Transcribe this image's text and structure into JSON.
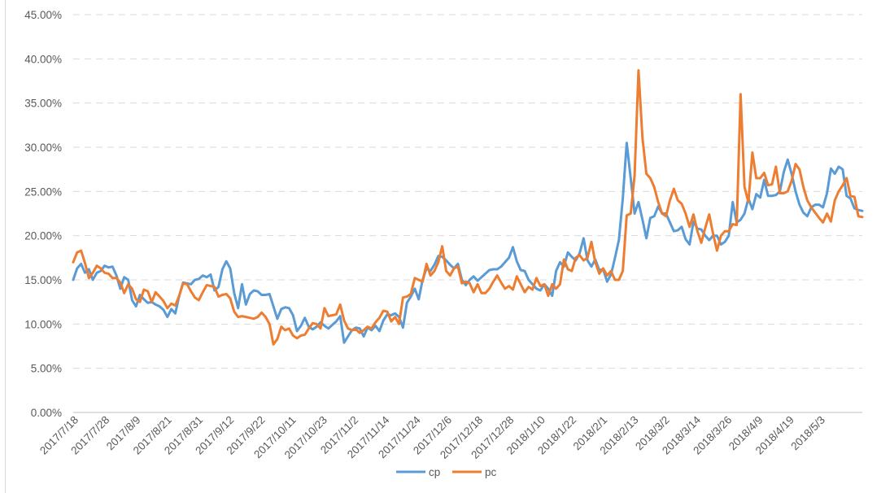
{
  "chart_data": {
    "type": "line",
    "title": "",
    "xlabel": "",
    "ylabel": "",
    "ylim": [
      0,
      0.45
    ],
    "y_ticks": [
      "0.00%",
      "5.00%",
      "10.00%",
      "15.00%",
      "20.00%",
      "25.00%",
      "30.00%",
      "35.00%",
      "40.00%",
      "45.00%"
    ],
    "x_tick_labels": [
      "2017/7/18",
      "2017/7/28",
      "2017/8/9",
      "2017/8/21",
      "2017/8/31",
      "2017/9/12",
      "2017/9/22",
      "2017/10/11",
      "2017/10/23",
      "2017/11/2",
      "2017/11/14",
      "2017/11/24",
      "2017/12/6",
      "2017/12/18",
      "2017/12/28",
      "2018/1/10",
      "2018/1/22",
      "2018/2/1",
      "2018/2/13",
      "2018/3/2",
      "2018/3/14",
      "2018/3/26",
      "2018/4/9",
      "2018/4/19",
      "2018/5/3"
    ],
    "grid": true,
    "legend_position": "bottom",
    "series": [
      {
        "name": "cp",
        "color": "#5b9bd5",
        "values": [
          0.15,
          0.163,
          0.168,
          0.158,
          0.162,
          0.15,
          0.158,
          0.16,
          0.166,
          0.164,
          0.165,
          0.155,
          0.14,
          0.153,
          0.15,
          0.127,
          0.12,
          0.133,
          0.128,
          0.124,
          0.125,
          0.122,
          0.12,
          0.116,
          0.108,
          0.117,
          0.112,
          0.132,
          0.147,
          0.146,
          0.145,
          0.15,
          0.151,
          0.155,
          0.153,
          0.156,
          0.138,
          0.142,
          0.162,
          0.171,
          0.163,
          0.135,
          0.118,
          0.145,
          0.122,
          0.134,
          0.138,
          0.137,
          0.133,
          0.133,
          0.134,
          0.12,
          0.106,
          0.117,
          0.119,
          0.118,
          0.11,
          0.092,
          0.098,
          0.107,
          0.097,
          0.094,
          0.097,
          0.102,
          0.098,
          0.095,
          0.099,
          0.103,
          0.109,
          0.079,
          0.086,
          0.093,
          0.096,
          0.095,
          0.086,
          0.096,
          0.093,
          0.098,
          0.092,
          0.104,
          0.111,
          0.11,
          0.112,
          0.108,
          0.096,
          0.124,
          0.131,
          0.14,
          0.128,
          0.15,
          0.163,
          0.16,
          0.167,
          0.177,
          0.176,
          0.172,
          0.167,
          0.163,
          0.168,
          0.15,
          0.144,
          0.15,
          0.154,
          0.149,
          0.153,
          0.157,
          0.161,
          0.162,
          0.162,
          0.165,
          0.17,
          0.175,
          0.187,
          0.171,
          0.161,
          0.16,
          0.15,
          0.145,
          0.14,
          0.138,
          0.145,
          0.14,
          0.132,
          0.16,
          0.17,
          0.165,
          0.181,
          0.176,
          0.172,
          0.18,
          0.197,
          0.172,
          0.165,
          0.173,
          0.161,
          0.162,
          0.148,
          0.156,
          0.175,
          0.195,
          0.242,
          0.305,
          0.265,
          0.225,
          0.238,
          0.218,
          0.197,
          0.22,
          0.222,
          0.233,
          0.225,
          0.225,
          0.215,
          0.205,
          0.206,
          0.21,
          0.196,
          0.19,
          0.216,
          0.208,
          0.207,
          0.2,
          0.195,
          0.2,
          0.2,
          0.19,
          0.193,
          0.2,
          0.238,
          0.215,
          0.218,
          0.225,
          0.242,
          0.23,
          0.247,
          0.243,
          0.263,
          0.245,
          0.245,
          0.246,
          0.25,
          0.272,
          0.286,
          0.27,
          0.25,
          0.235,
          0.226,
          0.222,
          0.232,
          0.235,
          0.235,
          0.232,
          0.248,
          0.276,
          0.27,
          0.278,
          0.275,
          0.245,
          0.242,
          0.231,
          0.229,
          0.228
        ]
      },
      {
        "name": "pc",
        "color": "#ed7d31",
        "values": [
          0.17,
          0.181,
          0.183,
          0.169,
          0.152,
          0.158,
          0.166,
          0.163,
          0.158,
          0.157,
          0.152,
          0.152,
          0.147,
          0.135,
          0.145,
          0.14,
          0.128,
          0.125,
          0.139,
          0.137,
          0.125,
          0.136,
          0.131,
          0.126,
          0.118,
          0.123,
          0.121,
          0.132,
          0.146,
          0.145,
          0.137,
          0.13,
          0.127,
          0.136,
          0.144,
          0.143,
          0.142,
          0.131,
          0.133,
          0.134,
          0.129,
          0.114,
          0.108,
          0.109,
          0.108,
          0.107,
          0.106,
          0.108,
          0.113,
          0.108,
          0.1,
          0.077,
          0.083,
          0.097,
          0.093,
          0.095,
          0.087,
          0.084,
          0.087,
          0.088,
          0.095,
          0.101,
          0.1,
          0.095,
          0.118,
          0.109,
          0.11,
          0.111,
          0.122,
          0.104,
          0.095,
          0.093,
          0.094,
          0.09,
          0.093,
          0.097,
          0.095,
          0.102,
          0.107,
          0.115,
          0.114,
          0.103,
          0.108,
          0.1,
          0.13,
          0.131,
          0.134,
          0.152,
          0.15,
          0.148,
          0.168,
          0.155,
          0.16,
          0.17,
          0.188,
          0.16,
          0.155,
          0.163,
          0.165,
          0.146,
          0.148,
          0.146,
          0.136,
          0.145,
          0.135,
          0.135,
          0.14,
          0.148,
          0.155,
          0.147,
          0.14,
          0.143,
          0.139,
          0.154,
          0.145,
          0.136,
          0.142,
          0.139,
          0.152,
          0.143,
          0.145,
          0.132,
          0.145,
          0.14,
          0.145,
          0.173,
          0.162,
          0.16,
          0.175,
          0.178,
          0.172,
          0.175,
          0.193,
          0.17,
          0.157,
          0.163,
          0.155,
          0.16,
          0.15,
          0.15,
          0.16,
          0.223,
          0.225,
          0.268,
          0.387,
          0.31,
          0.27,
          0.265,
          0.255,
          0.238,
          0.225,
          0.222,
          0.24,
          0.253,
          0.24,
          0.236,
          0.225,
          0.21,
          0.224,
          0.205,
          0.192,
          0.209,
          0.224,
          0.202,
          0.183,
          0.2,
          0.205,
          0.205,
          0.213,
          0.212,
          0.36,
          0.255,
          0.238,
          0.294,
          0.265,
          0.265,
          0.271,
          0.257,
          0.258,
          0.278,
          0.248,
          0.248,
          0.25,
          0.262,
          0.281,
          0.275,
          0.255,
          0.24,
          0.232,
          0.226,
          0.22,
          0.215,
          0.225,
          0.216,
          0.24,
          0.25,
          0.257,
          0.265,
          0.245,
          0.244,
          0.222,
          0.221
        ]
      }
    ]
  }
}
